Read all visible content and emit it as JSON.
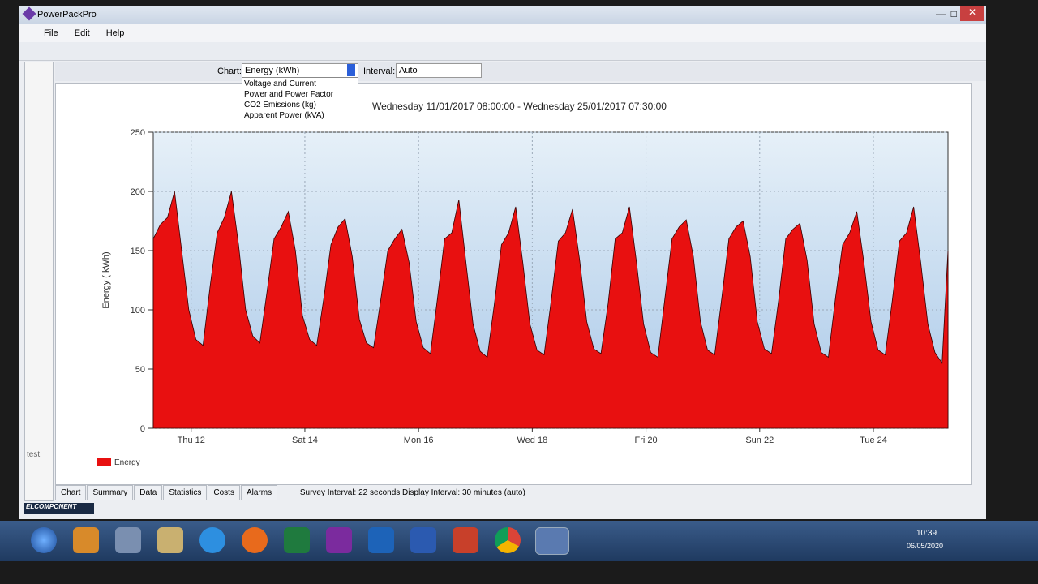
{
  "window": {
    "app_title": "PowerPackPro",
    "menu": [
      "File",
      "Edit",
      "Help"
    ],
    "chart_label": "Chart:",
    "chart_selected": "Energy (kWh)",
    "chart_options": [
      "Voltage and Current",
      "Power and Power Factor",
      "CO2 Emissions (kg)",
      "Apparent Power (kVA)"
    ],
    "interval_label": "Interval:",
    "interval_value": "Auto",
    "tabs": [
      "Chart",
      "Summary",
      "Data",
      "Statistics",
      "Costs",
      "Alarms"
    ],
    "status": "Survey Interval: 22 seconds  Display Interval: 30 minutes (auto)",
    "side_text": "test",
    "logo": "ELCOMPONENT",
    "clock_time": "10:39",
    "clock_date": "06/05/2020"
  },
  "chart_data": {
    "type": "area",
    "title": "Wednesday 11/01/2017  08:00:00 - Wednesday 25/01/2017 07:30:00",
    "y_label": "Energy ( kWh)",
    "color": "#e81010",
    "grid": true,
    "legend": "bottom-left",
    "xlim": [
      "2017-01-11 08:00",
      "2017-01-25 07:30"
    ],
    "xticks": [
      {
        "value": "2017-01-12 00:00",
        "label": "Thu 12"
      },
      {
        "value": "2017-01-14 00:00",
        "label": "Sat 14"
      },
      {
        "value": "2017-01-16 00:00",
        "label": "Mon 16"
      },
      {
        "value": "2017-01-18 00:00",
        "label": "Wed 18"
      },
      {
        "value": "2017-01-20 00:00",
        "label": "Fri 20"
      },
      {
        "value": "2017-01-22 00:00",
        "label": "Sun 22"
      },
      {
        "value": "2017-01-24 00:00",
        "label": "Tue 24"
      }
    ],
    "ylim": [
      0,
      250
    ],
    "yticks": [
      0,
      50,
      100,
      150,
      200,
      250
    ],
    "series": [
      {
        "name": "Energy",
        "color": "#e81010",
        "x": [
          "2017-01-11 08:00",
          "2017-01-11 11:00",
          "2017-01-11 14:00",
          "2017-01-11 17:00",
          "2017-01-11 20:00",
          "2017-01-11 23:00",
          "2017-01-12 02:00",
          "2017-01-12 05:00",
          "2017-01-12 08:00",
          "2017-01-12 11:00",
          "2017-01-12 14:00",
          "2017-01-12 17:00",
          "2017-01-12 20:00",
          "2017-01-12 23:00",
          "2017-01-13 02:00",
          "2017-01-13 05:00",
          "2017-01-13 08:00",
          "2017-01-13 11:00",
          "2017-01-13 14:00",
          "2017-01-13 17:00",
          "2017-01-13 20:00",
          "2017-01-13 23:00",
          "2017-01-14 02:00",
          "2017-01-14 05:00",
          "2017-01-14 08:00",
          "2017-01-14 11:00",
          "2017-01-14 14:00",
          "2017-01-14 17:00",
          "2017-01-14 20:00",
          "2017-01-14 23:00",
          "2017-01-15 02:00",
          "2017-01-15 05:00",
          "2017-01-15 08:00",
          "2017-01-15 11:00",
          "2017-01-15 14:00",
          "2017-01-15 17:00",
          "2017-01-15 20:00",
          "2017-01-15 23:00",
          "2017-01-16 02:00",
          "2017-01-16 05:00",
          "2017-01-16 08:00",
          "2017-01-16 11:00",
          "2017-01-16 14:00",
          "2017-01-16 17:00",
          "2017-01-16 20:00",
          "2017-01-16 23:00",
          "2017-01-17 02:00",
          "2017-01-17 05:00",
          "2017-01-17 08:00",
          "2017-01-17 11:00",
          "2017-01-17 14:00",
          "2017-01-17 17:00",
          "2017-01-17 20:00",
          "2017-01-17 23:00",
          "2017-01-18 02:00",
          "2017-01-18 05:00",
          "2017-01-18 08:00",
          "2017-01-18 11:00",
          "2017-01-18 14:00",
          "2017-01-18 17:00",
          "2017-01-18 20:00",
          "2017-01-18 23:00",
          "2017-01-19 02:00",
          "2017-01-19 05:00",
          "2017-01-19 08:00",
          "2017-01-19 11:00",
          "2017-01-19 14:00",
          "2017-01-19 17:00",
          "2017-01-19 20:00",
          "2017-01-19 23:00",
          "2017-01-20 02:00",
          "2017-01-20 05:00",
          "2017-01-20 08:00",
          "2017-01-20 11:00",
          "2017-01-20 14:00",
          "2017-01-20 17:00",
          "2017-01-20 20:00",
          "2017-01-20 23:00",
          "2017-01-21 02:00",
          "2017-01-21 05:00",
          "2017-01-21 08:00",
          "2017-01-21 11:00",
          "2017-01-21 14:00",
          "2017-01-21 17:00",
          "2017-01-21 20:00",
          "2017-01-21 23:00",
          "2017-01-22 02:00",
          "2017-01-22 05:00",
          "2017-01-22 08:00",
          "2017-01-22 11:00",
          "2017-01-22 14:00",
          "2017-01-22 17:00",
          "2017-01-22 20:00",
          "2017-01-22 23:00",
          "2017-01-23 02:00",
          "2017-01-23 05:00",
          "2017-01-23 08:00",
          "2017-01-23 11:00",
          "2017-01-23 14:00",
          "2017-01-23 17:00",
          "2017-01-23 20:00",
          "2017-01-23 23:00",
          "2017-01-24 02:00",
          "2017-01-24 05:00",
          "2017-01-24 08:00",
          "2017-01-24 11:00",
          "2017-01-24 14:00",
          "2017-01-24 17:00",
          "2017-01-24 20:00",
          "2017-01-24 23:00",
          "2017-01-25 02:00",
          "2017-01-25 05:00",
          "2017-01-25 07:30"
        ],
        "values": [
          160,
          172,
          178,
          200,
          150,
          100,
          75,
          70,
          120,
          165,
          178,
          200,
          155,
          100,
          78,
          72,
          115,
          160,
          170,
          183,
          150,
          95,
          75,
          70,
          110,
          155,
          170,
          177,
          145,
          92,
          72,
          68,
          108,
          150,
          160,
          168,
          140,
          90,
          68,
          63,
          110,
          160,
          165,
          193,
          140,
          88,
          65,
          60,
          105,
          155,
          165,
          187,
          140,
          88,
          66,
          62,
          108,
          158,
          165,
          185,
          142,
          90,
          67,
          63,
          105,
          160,
          165,
          187,
          140,
          88,
          64,
          60,
          110,
          160,
          170,
          176,
          145,
          90,
          66,
          62,
          110,
          160,
          170,
          175,
          145,
          90,
          67,
          63,
          108,
          160,
          168,
          173,
          142,
          88,
          64,
          60,
          110,
          155,
          165,
          183,
          140,
          90,
          66,
          62,
          108,
          158,
          165,
          187,
          140,
          88,
          64,
          55,
          150
        ]
      }
    ]
  }
}
